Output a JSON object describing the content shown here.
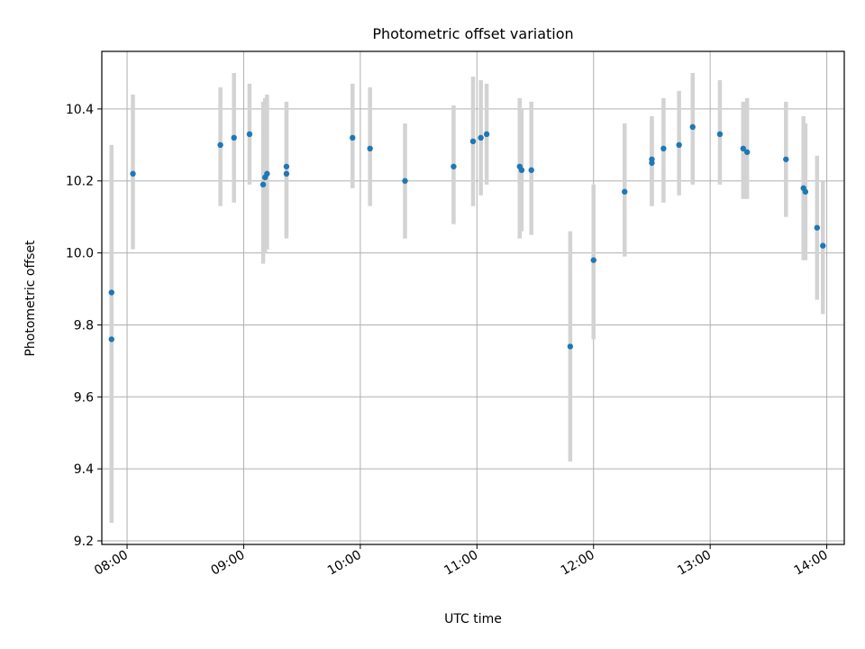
{
  "chart_data": {
    "type": "scatter",
    "title": "Photometric offset variation",
    "xlabel": "UTC time",
    "ylabel": "Photometric offset",
    "x_tick_labels": [
      "08:00",
      "09:00",
      "10:00",
      "11:00",
      "12:00",
      "13:00",
      "14:00"
    ],
    "y_tick_labels": [
      "9.2",
      "9.4",
      "9.6",
      "9.8",
      "10.0",
      "10.2",
      "10.4"
    ],
    "y_ticks": [
      9.2,
      9.4,
      9.6,
      9.8,
      10.0,
      10.2,
      10.4
    ],
    "xlim": [
      "07:47",
      "14:09"
    ],
    "ylim": [
      9.19,
      10.56
    ],
    "grid": true,
    "colors": {
      "point": "#1f77b4",
      "errorbar": "#d3d3d3",
      "grid": "#b0b0b0"
    },
    "points": [
      {
        "x": "07:52",
        "y": 9.89,
        "err_low": 9.25,
        "err_high": 10.3
      },
      {
        "x": "07:52",
        "y": 9.76,
        "err_low": 9.25,
        "err_high": 10.27
      },
      {
        "x": "08:03",
        "y": 10.22,
        "err_low": 10.01,
        "err_high": 10.44
      },
      {
        "x": "08:48",
        "y": 10.3,
        "err_low": 10.13,
        "err_high": 10.46
      },
      {
        "x": "08:55",
        "y": 10.32,
        "err_low": 10.14,
        "err_high": 10.5
      },
      {
        "x": "09:03",
        "y": 10.33,
        "err_low": 10.19,
        "err_high": 10.47
      },
      {
        "x": "09:10",
        "y": 10.19,
        "err_low": 9.97,
        "err_high": 10.42
      },
      {
        "x": "09:11",
        "y": 10.21,
        "err_low": 10.0,
        "err_high": 10.43
      },
      {
        "x": "09:12",
        "y": 10.22,
        "err_low": 10.01,
        "err_high": 10.44
      },
      {
        "x": "09:22",
        "y": 10.24,
        "err_low": 10.05,
        "err_high": 10.42
      },
      {
        "x": "09:22",
        "y": 10.22,
        "err_low": 10.04,
        "err_high": 10.4
      },
      {
        "x": "09:56",
        "y": 10.32,
        "err_low": 10.18,
        "err_high": 10.47
      },
      {
        "x": "10:05",
        "y": 10.29,
        "err_low": 10.13,
        "err_high": 10.46
      },
      {
        "x": "10:23",
        "y": 10.2,
        "err_low": 10.04,
        "err_high": 10.36
      },
      {
        "x": "10:48",
        "y": 10.24,
        "err_low": 10.08,
        "err_high": 10.41
      },
      {
        "x": "10:58",
        "y": 10.31,
        "err_low": 10.13,
        "err_high": 10.49
      },
      {
        "x": "11:02",
        "y": 10.32,
        "err_low": 10.16,
        "err_high": 10.48
      },
      {
        "x": "11:05",
        "y": 10.33,
        "err_low": 10.19,
        "err_high": 10.47
      },
      {
        "x": "11:22",
        "y": 10.24,
        "err_low": 10.04,
        "err_high": 10.43
      },
      {
        "x": "11:23",
        "y": 10.23,
        "err_low": 10.06,
        "err_high": 10.4
      },
      {
        "x": "11:28",
        "y": 10.23,
        "err_low": 10.05,
        "err_high": 10.42
      },
      {
        "x": "11:48",
        "y": 9.74,
        "err_low": 9.42,
        "err_high": 10.06
      },
      {
        "x": "12:00",
        "y": 9.98,
        "err_low": 9.76,
        "err_high": 10.19
      },
      {
        "x": "12:16",
        "y": 10.17,
        "err_low": 9.99,
        "err_high": 10.36
      },
      {
        "x": "12:30",
        "y": 10.26,
        "err_low": 10.13,
        "err_high": 10.38
      },
      {
        "x": "12:30",
        "y": 10.25,
        "err_low": 10.13,
        "err_high": 10.37
      },
      {
        "x": "12:36",
        "y": 10.29,
        "err_low": 10.14,
        "err_high": 10.43
      },
      {
        "x": "12:44",
        "y": 10.3,
        "err_low": 10.16,
        "err_high": 10.45
      },
      {
        "x": "12:51",
        "y": 10.35,
        "err_low": 10.19,
        "err_high": 10.5
      },
      {
        "x": "13:05",
        "y": 10.33,
        "err_low": 10.19,
        "err_high": 10.48
      },
      {
        "x": "13:17",
        "y": 10.29,
        "err_low": 10.15,
        "err_high": 10.42
      },
      {
        "x": "13:19",
        "y": 10.28,
        "err_low": 10.15,
        "err_high": 10.43
      },
      {
        "x": "13:39",
        "y": 10.26,
        "err_low": 10.1,
        "err_high": 10.42
      },
      {
        "x": "13:48",
        "y": 10.18,
        "err_low": 9.98,
        "err_high": 10.38
      },
      {
        "x": "13:49",
        "y": 10.17,
        "err_low": 9.98,
        "err_high": 10.36
      },
      {
        "x": "13:55",
        "y": 10.07,
        "err_low": 9.87,
        "err_high": 10.27
      },
      {
        "x": "13:58",
        "y": 10.02,
        "err_low": 9.83,
        "err_high": 10.2
      }
    ]
  }
}
